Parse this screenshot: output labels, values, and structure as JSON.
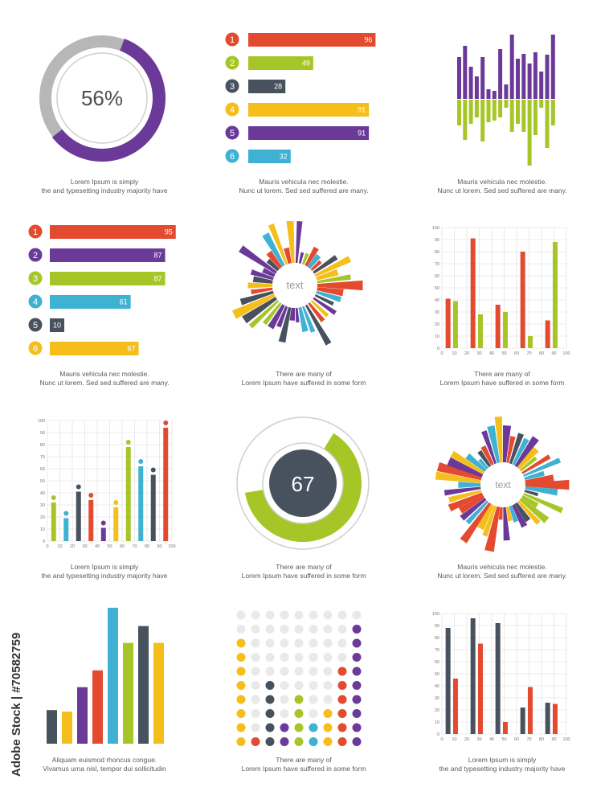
{
  "colors": {
    "red": "#e34a2f",
    "green": "#a6c628",
    "purple": "#6b3a99",
    "blue": "#3fb1d3",
    "yellow": "#f6be1a",
    "slate": "#48525e",
    "grey": "#b7b7b7",
    "lightgrey": "#e9e9e9"
  },
  "donut1": {
    "value": "56%"
  },
  "donut2": {
    "value": "67"
  },
  "hbars1": {
    "items": [
      {
        "n": "1",
        "v": "96",
        "c": "red"
      },
      {
        "n": "2",
        "v": "49",
        "c": "green"
      },
      {
        "n": "3",
        "v": "28",
        "c": "slate"
      },
      {
        "n": "4",
        "v": "91",
        "c": "yellow"
      },
      {
        "n": "5",
        "v": "91",
        "c": "purple"
      },
      {
        "n": "6",
        "v": "32",
        "c": "blue"
      }
    ]
  },
  "hbars2": {
    "items": [
      {
        "n": "1",
        "v": "95",
        "c": "red"
      },
      {
        "n": "2",
        "v": "87",
        "c": "purple"
      },
      {
        "n": "3",
        "v": "87",
        "c": "green"
      },
      {
        "n": "4",
        "v": "61",
        "c": "blue"
      },
      {
        "n": "5",
        "v": "10",
        "c": "slate"
      },
      {
        "n": "6",
        "v": "67",
        "c": "yellow"
      }
    ]
  },
  "sunburst1": {
    "label": "text"
  },
  "sunburst2": {
    "label": "text"
  },
  "captions": {
    "c1": [
      "Lorem Ipsum is simply",
      "the  and typesetting industry majority have"
    ],
    "c2": [
      "Mauris vehicula nec molestie.",
      "Nunc ut  lorem. Sed sed  suffered  are many."
    ],
    "c3": [
      "Mauris vehicula nec molestie.",
      "Nunc ut  lorem. Sed sed  suffered  are many."
    ],
    "c4": [
      "Mauris vehicula nec molestie.",
      "Nunc ut  lorem. Sed sed  suffered  are many."
    ],
    "c5": [
      "There are many  of",
      "Lorem Ipsum  have suffered  in some form"
    ],
    "c6": [
      "There are many  of",
      "Lorem Ipsum  have suffered  in some form"
    ],
    "c7": [
      "Lorem Ipsum is simply",
      "the  and typesetting industry majority have"
    ],
    "c8": [
      "There are many  of",
      "Lorem Ipsum  have suffered  in some form"
    ],
    "c9": [
      "Mauris vehicula nec molestie.",
      "Nunc ut  lorem. Sed sed  suffered  are many."
    ],
    "c10": [
      "Aliquam euismod rhoncus congue.",
      "Vivamus urna nisl,  tempor dui sollicitudin"
    ],
    "c11": [
      "There are many  of",
      "Lorem Ipsum  have suffered  in some form"
    ],
    "c12": [
      "Lorem Ipsum is simply",
      "the  and typesetting industry majority have"
    ]
  },
  "watermark": "Adobe Stock | #70582759",
  "chart_data": [
    {
      "type": "pie",
      "title": "",
      "values": [
        56
      ],
      "label": "56%"
    },
    {
      "type": "bar",
      "orientation": "horizontal",
      "categories": [
        "1",
        "2",
        "3",
        "4",
        "5",
        "6"
      ],
      "values": [
        96,
        49,
        28,
        91,
        91,
        32
      ]
    },
    {
      "type": "bar",
      "orientation": "diverging",
      "up": [
        52,
        66,
        40,
        28,
        52,
        12,
        10,
        62,
        18,
        80,
        50,
        56,
        44,
        58,
        34,
        55,
        80
      ],
      "down": [
        32,
        50,
        30,
        22,
        52,
        28,
        26,
        22,
        10,
        40,
        30,
        40,
        82,
        44,
        10,
        60,
        32
      ]
    },
    {
      "type": "bar",
      "orientation": "horizontal",
      "categories": [
        "1",
        "2",
        "3",
        "4",
        "5",
        "6"
      ],
      "values": [
        95,
        87,
        87,
        61,
        10,
        67
      ]
    },
    {
      "type": "pie",
      "subtype": "radial-burst",
      "label": "text"
    },
    {
      "type": "bar",
      "x": [
        10,
        30,
        50,
        70,
        90
      ],
      "series": [
        {
          "values": [
            41,
            91,
            36,
            80,
            23
          ]
        },
        {
          "values": [
            39,
            28,
            30,
            10,
            88
          ]
        }
      ],
      "xlim": [
        0,
        100
      ],
      "ylim": [
        0,
        100
      ],
      "grid": true,
      "xticks": [
        0,
        10,
        20,
        30,
        40,
        50,
        60,
        70,
        80,
        90,
        100
      ],
      "yticks": [
        0,
        10,
        20,
        30,
        40,
        50,
        60,
        70,
        80,
        90,
        100
      ]
    },
    {
      "type": "bar",
      "subtype": "lollipop",
      "x": [
        5,
        15,
        25,
        35,
        45,
        55,
        65,
        75,
        85,
        95
      ],
      "values": [
        32,
        19,
        41,
        34,
        11,
        28,
        78,
        62,
        55,
        94
      ],
      "colors": [
        "green",
        "blue",
        "slate",
        "red",
        "purple",
        "yellow",
        "green",
        "blue",
        "slate",
        "red"
      ],
      "xlim": [
        0,
        100
      ],
      "ylim": [
        0,
        100
      ],
      "grid": true,
      "xticks": [
        0,
        10,
        20,
        30,
        40,
        50,
        60,
        70,
        80,
        90,
        100
      ],
      "yticks": [
        0,
        10,
        20,
        30,
        40,
        50,
        60,
        70,
        80,
        90,
        100
      ]
    },
    {
      "type": "pie",
      "title": "",
      "values": [
        67
      ],
      "label": "67"
    },
    {
      "type": "pie",
      "subtype": "radial-burst",
      "label": "text"
    },
    {
      "type": "bar",
      "values": [
        22,
        21,
        37,
        48,
        89,
        66,
        77,
        66
      ],
      "colors": [
        "slate",
        "yellow",
        "purple",
        "red",
        "blue",
        "green",
        "slate",
        "yellow"
      ]
    },
    {
      "type": "scatter",
      "subtype": "dot-matrix",
      "columns": 9,
      "rows": 10,
      "filled": [
        8,
        1,
        5,
        2,
        4,
        2,
        3,
        6,
        9
      ],
      "colors": [
        "yellow",
        "red",
        "slate",
        "purple",
        "green",
        "blue",
        "yellow",
        "red",
        "purple"
      ]
    },
    {
      "type": "bar",
      "x": [
        10,
        30,
        50,
        70,
        90
      ],
      "series": [
        {
          "values": [
            88,
            96,
            92,
            22,
            26
          ]
        },
        {
          "values": [
            46,
            75,
            10,
            39,
            25
          ]
        }
      ],
      "xlim": [
        0,
        100
      ],
      "ylim": [
        0,
        100
      ],
      "grid": true,
      "xticks": [
        0,
        10,
        20,
        30,
        40,
        50,
        60,
        70,
        80,
        90,
        100
      ],
      "yticks": [
        0,
        10,
        20,
        30,
        40,
        50,
        60,
        70,
        80,
        90,
        100
      ]
    }
  ]
}
